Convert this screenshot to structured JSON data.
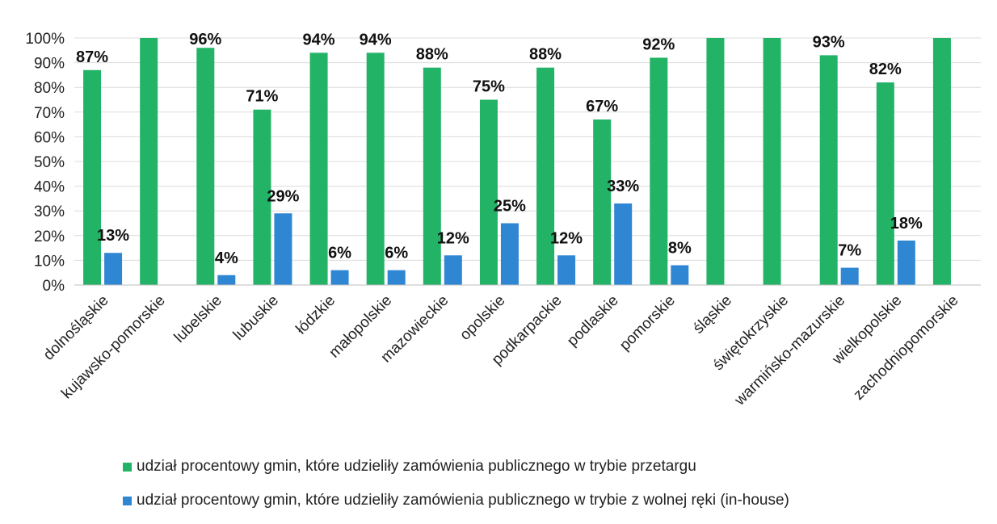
{
  "chart_data": {
    "type": "bar",
    "categories": [
      "dolnośląskie",
      "kujawsko-pomorskie",
      "lubelskie",
      "lubuskie",
      "łódzkie",
      "małopolskie",
      "mazowieckie",
      "opolskie",
      "podkarpackie",
      "podlaskie",
      "pomorskie",
      "śląskie",
      "świętokrzyskie",
      "warmińsko-mazurskie",
      "wielkopolskie",
      "zachodniopomorskie"
    ],
    "series": [
      {
        "name": "udział procentowy gmin, które udzieliły zamówienia publicznego w trybie przetargu",
        "color": "#22b366",
        "values": [
          87,
          100,
          96,
          71,
          94,
          94,
          88,
          75,
          88,
          67,
          92,
          100,
          100,
          93,
          82,
          100
        ],
        "labels": [
          "87%",
          "",
          "96%",
          "71%",
          "94%",
          "94%",
          "88%",
          "75%",
          "88%",
          "67%",
          "92%",
          "",
          "",
          "93%",
          "82%",
          ""
        ]
      },
      {
        "name": "udział procentowy gmin, które udzieliły zamówienia publicznego w trybie z wolnej ręki (in-house)",
        "color": "#2f86d3",
        "values": [
          13,
          0,
          4,
          29,
          6,
          6,
          12,
          25,
          12,
          33,
          8,
          0,
          0,
          7,
          18,
          0
        ],
        "labels": [
          "13%",
          "",
          "4%",
          "29%",
          "6%",
          "6%",
          "12%",
          "25%",
          "12%",
          "33%",
          "8%",
          "",
          "",
          "7%",
          "18%",
          ""
        ]
      }
    ],
    "yticks": [
      "0%",
      "10%",
      "20%",
      "30%",
      "40%",
      "50%",
      "60%",
      "70%",
      "80%",
      "90%",
      "100%"
    ],
    "ylim": [
      0,
      100
    ],
    "grid": true,
    "legend_position": "bottom",
    "title": "",
    "xlabel": "",
    "ylabel": ""
  }
}
